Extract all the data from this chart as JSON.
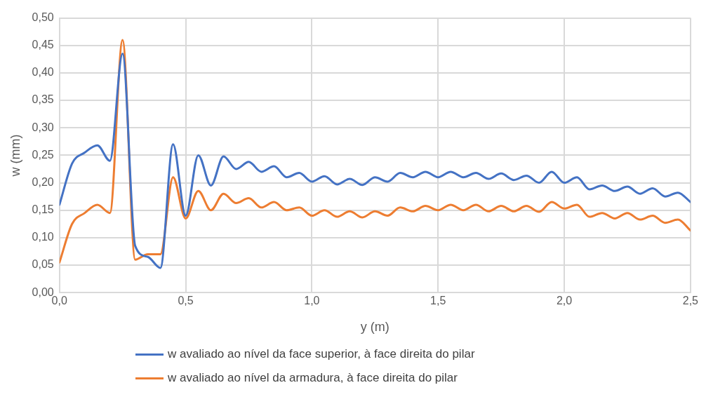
{
  "chart_data": {
    "type": "line",
    "xlabel": "y (m)",
    "ylabel": "w (mm)",
    "x": [
      0,
      0.05,
      0.1,
      0.15,
      0.2,
      0.25,
      0.3,
      0.35,
      0.4,
      0.45,
      0.5,
      0.55,
      0.6,
      0.65,
      0.7,
      0.75,
      0.8,
      0.85,
      0.9,
      0.95,
      1,
      1.05,
      1.1,
      1.15,
      1.2,
      1.25,
      1.3,
      1.35,
      1.4,
      1.45,
      1.5,
      1.55,
      1.6,
      1.65,
      1.7,
      1.75,
      1.8,
      1.85,
      1.9,
      1.95,
      2,
      2.05,
      2.1,
      2.15,
      2.2,
      2.25,
      2.3,
      2.35,
      2.4,
      2.45,
      2.5
    ],
    "series": [
      {
        "name": "w avaliado ao nível da face superior, à face direita do pilar",
        "color": "#4472c4",
        "values": [
          0.16,
          0.235,
          0.255,
          0.268,
          0.24,
          0.435,
          0.085,
          0.065,
          0.045,
          0.27,
          0.14,
          0.25,
          0.195,
          0.248,
          0.225,
          0.238,
          0.22,
          0.23,
          0.21,
          0.218,
          0.202,
          0.212,
          0.197,
          0.207,
          0.196,
          0.21,
          0.202,
          0.218,
          0.21,
          0.22,
          0.21,
          0.22,
          0.21,
          0.218,
          0.207,
          0.217,
          0.205,
          0.213,
          0.2,
          0.22,
          0.2,
          0.21,
          0.188,
          0.195,
          0.185,
          0.193,
          0.18,
          0.19,
          0.175,
          0.182,
          0.165
        ]
      },
      {
        "name": "w avaliado ao nível da armadura, à face direita do pilar",
        "color": "#ed7d31",
        "values": [
          0.055,
          0.125,
          0.145,
          0.16,
          0.145,
          0.46,
          0.06,
          0.07,
          0.07,
          0.21,
          0.135,
          0.185,
          0.15,
          0.18,
          0.163,
          0.172,
          0.155,
          0.165,
          0.15,
          0.155,
          0.14,
          0.15,
          0.138,
          0.148,
          0.137,
          0.148,
          0.14,
          0.155,
          0.148,
          0.158,
          0.15,
          0.16,
          0.15,
          0.16,
          0.148,
          0.158,
          0.148,
          0.158,
          0.147,
          0.165,
          0.153,
          0.16,
          0.138,
          0.145,
          0.135,
          0.145,
          0.133,
          0.14,
          0.127,
          0.133,
          0.113
        ]
      }
    ],
    "xlim": [
      0,
      2.5
    ],
    "xticks": [
      {
        "value": 0,
        "label": "0,0"
      },
      {
        "value": 0.5,
        "label": "0,5"
      },
      {
        "value": 1,
        "label": "1,0"
      },
      {
        "value": 1.5,
        "label": "1,5"
      },
      {
        "value": 2,
        "label": "2,0"
      },
      {
        "value": 2.5,
        "label": "2,5"
      }
    ],
    "ylim": [
      0,
      0.5
    ],
    "yticks": [
      {
        "value": 0,
        "label": "0,00"
      },
      {
        "value": 0.05,
        "label": "0,05"
      },
      {
        "value": 0.1,
        "label": "0,10"
      },
      {
        "value": 0.15,
        "label": "0,15"
      },
      {
        "value": 0.2,
        "label": "0,20"
      },
      {
        "value": 0.25,
        "label": "0,25"
      },
      {
        "value": 0.3,
        "label": "0,30"
      },
      {
        "value": 0.35,
        "label": "0,35"
      },
      {
        "value": 0.4,
        "label": "0,40"
      },
      {
        "value": 0.45,
        "label": "0,45"
      },
      {
        "value": 0.5,
        "label": "0,50"
      }
    ],
    "grid": true,
    "legend": "bottom",
    "marker": "none",
    "line_style": "solid"
  }
}
